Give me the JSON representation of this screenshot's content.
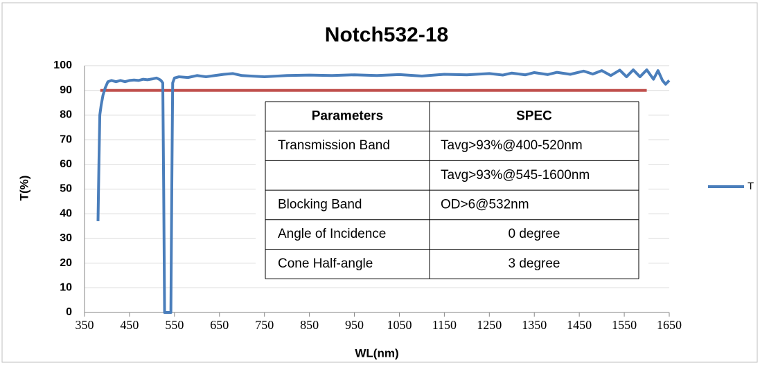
{
  "chart_data": {
    "type": "line",
    "title": "Notch532-18",
    "x_label": "WL(nm)",
    "y_label": "T(%)",
    "xlim": [
      350,
      1650
    ],
    "xticks": [
      350,
      450,
      550,
      650,
      750,
      850,
      950,
      1050,
      1150,
      1250,
      1350,
      1450,
      1550,
      1650
    ],
    "ylim": [
      0,
      100
    ],
    "yticks": [
      0,
      10,
      20,
      30,
      40,
      50,
      60,
      70,
      80,
      90,
      100
    ],
    "grid": true,
    "legend": "right",
    "series": [
      {
        "name": "T",
        "color": "#4a7ebb",
        "x": [
          380,
          382,
          384,
          387,
          391,
          396,
          402,
          410,
          420,
          430,
          440,
          450,
          460,
          470,
          480,
          490,
          500,
          510,
          516,
          520,
          524,
          526,
          528,
          542,
          544,
          546,
          550,
          560,
          580,
          600,
          620,
          640,
          660,
          680,
          700,
          720,
          750,
          800,
          850,
          900,
          950,
          1000,
          1050,
          1100,
          1150,
          1200,
          1250,
          1280,
          1300,
          1330,
          1350,
          1380,
          1400,
          1430,
          1460,
          1480,
          1500,
          1520,
          1540,
          1555,
          1570,
          1585,
          1600,
          1615,
          1625,
          1635,
          1642,
          1650
        ],
        "values": [
          37,
          60,
          80,
          84,
          88,
          91,
          93.5,
          94,
          93.5,
          94,
          93.5,
          94,
          94.2,
          94,
          94.5,
          94.3,
          94.6,
          95,
          94.5,
          94,
          93,
          50,
          0,
          0,
          50,
          93,
          95,
          95.5,
          95.2,
          96,
          95.5,
          96,
          96.5,
          96.8,
          96,
          95.8,
          95.5,
          96,
          96.2,
          96,
          96.3,
          96,
          96.4,
          95.8,
          96.5,
          96.3,
          96.8,
          96.2,
          97,
          96.3,
          97.2,
          96.4,
          97.3,
          96.5,
          97.8,
          96.6,
          98,
          96,
          98.2,
          95.5,
          98.3,
          95.5,
          98.3,
          94.5,
          98,
          94,
          92.5,
          94
        ]
      }
    ],
    "spec_line": {
      "color": "#c0504d",
      "x": [
        385,
        1600
      ],
      "values": [
        90,
        90
      ]
    },
    "table": {
      "header": [
        "Parameters",
        "SPEC"
      ],
      "rows": [
        [
          "Transmission Band",
          "Tavg>93%@400-520nm"
        ],
        [
          null,
          "Tavg>93%@545-1600nm"
        ],
        [
          "Blocking Band",
          "OD>6@532nm"
        ],
        [
          "Angle of Incidence",
          "0 degree"
        ],
        [
          "Cone Half-angle",
          "3 degree"
        ]
      ]
    }
  }
}
